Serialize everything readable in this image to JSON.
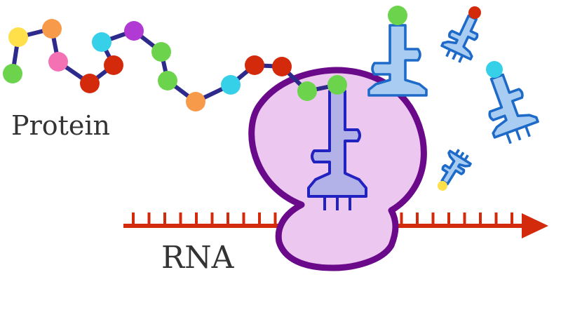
{
  "labels": {
    "protein": "Protein",
    "rna": "RNA"
  },
  "colors": {
    "chain": "#2e2a8c",
    "ribosome_fill": "#ecc8f0",
    "ribosome_stroke": "#6a0a8a",
    "rna_strand": "#d42a0c",
    "trna_bound_fill": "#b2b2e8",
    "trna_bound_stroke": "#2222c0",
    "trna_free_fill": "#a9cdf2",
    "trna_free_stroke": "#1e6ac8"
  },
  "protein_chain": {
    "amino_acid_colors": [
      "#6cd44c",
      "#ffdf4a",
      "#f79a4a",
      "#f472b4",
      "#d42a0c",
      "#d42a0c",
      "#36d0e8",
      "#b13ad4",
      "#6cd44c",
      "#6cd44c",
      "#f79a4a",
      "#36d0e8",
      "#d42a0c",
      "#d42a0c",
      "#6cd44c",
      "#6cd44c"
    ]
  },
  "free_trna": {
    "amino_acid_colors": [
      "#6cd44c",
      "#d42a0c",
      "#36d0e8",
      "#ffdf4a"
    ]
  }
}
